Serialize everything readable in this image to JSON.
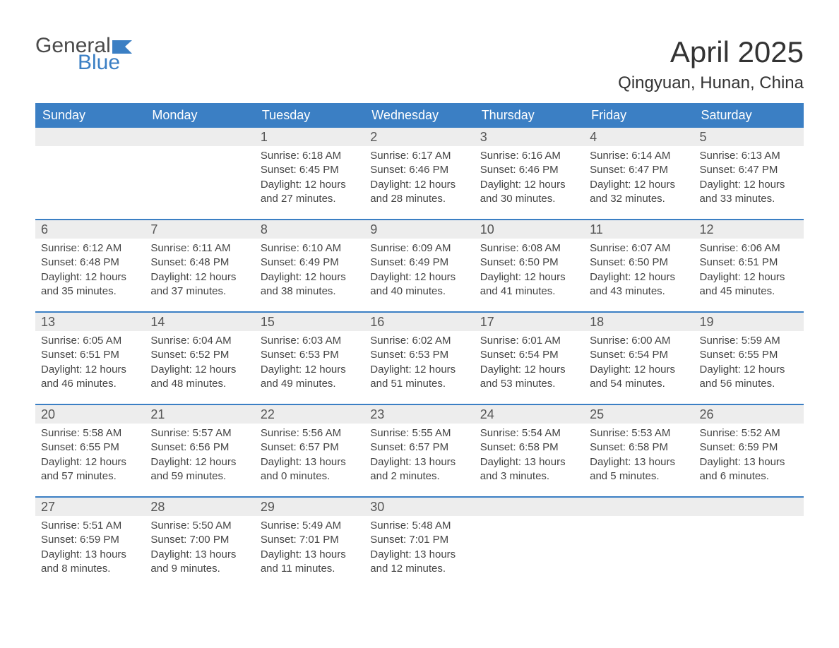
{
  "logo": {
    "text1": "General",
    "text2": "Blue",
    "flag_color": "#3b7fc4",
    "text1_color": "#4a4a4a"
  },
  "title": "April 2025",
  "location": "Qingyuan, Hunan, China",
  "colors": {
    "header_bg": "#3b7fc4",
    "header_text": "#ffffff",
    "daynum_bg": "#ededed",
    "body_text": "#444444",
    "rule": "#3b7fc4"
  },
  "day_names": [
    "Sunday",
    "Monday",
    "Tuesday",
    "Wednesday",
    "Thursday",
    "Friday",
    "Saturday"
  ],
  "weeks": [
    [
      {
        "day": "",
        "sunrise": "",
        "sunset": "",
        "daylight": ""
      },
      {
        "day": "",
        "sunrise": "",
        "sunset": "",
        "daylight": ""
      },
      {
        "day": "1",
        "sunrise": "6:18 AM",
        "sunset": "6:45 PM",
        "daylight": "12 hours and 27 minutes."
      },
      {
        "day": "2",
        "sunrise": "6:17 AM",
        "sunset": "6:46 PM",
        "daylight": "12 hours and 28 minutes."
      },
      {
        "day": "3",
        "sunrise": "6:16 AM",
        "sunset": "6:46 PM",
        "daylight": "12 hours and 30 minutes."
      },
      {
        "day": "4",
        "sunrise": "6:14 AM",
        "sunset": "6:47 PM",
        "daylight": "12 hours and 32 minutes."
      },
      {
        "day": "5",
        "sunrise": "6:13 AM",
        "sunset": "6:47 PM",
        "daylight": "12 hours and 33 minutes."
      }
    ],
    [
      {
        "day": "6",
        "sunrise": "6:12 AM",
        "sunset": "6:48 PM",
        "daylight": "12 hours and 35 minutes."
      },
      {
        "day": "7",
        "sunrise": "6:11 AM",
        "sunset": "6:48 PM",
        "daylight": "12 hours and 37 minutes."
      },
      {
        "day": "8",
        "sunrise": "6:10 AM",
        "sunset": "6:49 PM",
        "daylight": "12 hours and 38 minutes."
      },
      {
        "day": "9",
        "sunrise": "6:09 AM",
        "sunset": "6:49 PM",
        "daylight": "12 hours and 40 minutes."
      },
      {
        "day": "10",
        "sunrise": "6:08 AM",
        "sunset": "6:50 PM",
        "daylight": "12 hours and 41 minutes."
      },
      {
        "day": "11",
        "sunrise": "6:07 AM",
        "sunset": "6:50 PM",
        "daylight": "12 hours and 43 minutes."
      },
      {
        "day": "12",
        "sunrise": "6:06 AM",
        "sunset": "6:51 PM",
        "daylight": "12 hours and 45 minutes."
      }
    ],
    [
      {
        "day": "13",
        "sunrise": "6:05 AM",
        "sunset": "6:51 PM",
        "daylight": "12 hours and 46 minutes."
      },
      {
        "day": "14",
        "sunrise": "6:04 AM",
        "sunset": "6:52 PM",
        "daylight": "12 hours and 48 minutes."
      },
      {
        "day": "15",
        "sunrise": "6:03 AM",
        "sunset": "6:53 PM",
        "daylight": "12 hours and 49 minutes."
      },
      {
        "day": "16",
        "sunrise": "6:02 AM",
        "sunset": "6:53 PM",
        "daylight": "12 hours and 51 minutes."
      },
      {
        "day": "17",
        "sunrise": "6:01 AM",
        "sunset": "6:54 PM",
        "daylight": "12 hours and 53 minutes."
      },
      {
        "day": "18",
        "sunrise": "6:00 AM",
        "sunset": "6:54 PM",
        "daylight": "12 hours and 54 minutes."
      },
      {
        "day": "19",
        "sunrise": "5:59 AM",
        "sunset": "6:55 PM",
        "daylight": "12 hours and 56 minutes."
      }
    ],
    [
      {
        "day": "20",
        "sunrise": "5:58 AM",
        "sunset": "6:55 PM",
        "daylight": "12 hours and 57 minutes."
      },
      {
        "day": "21",
        "sunrise": "5:57 AM",
        "sunset": "6:56 PM",
        "daylight": "12 hours and 59 minutes."
      },
      {
        "day": "22",
        "sunrise": "5:56 AM",
        "sunset": "6:57 PM",
        "daylight": "13 hours and 0 minutes."
      },
      {
        "day": "23",
        "sunrise": "5:55 AM",
        "sunset": "6:57 PM",
        "daylight": "13 hours and 2 minutes."
      },
      {
        "day": "24",
        "sunrise": "5:54 AM",
        "sunset": "6:58 PM",
        "daylight": "13 hours and 3 minutes."
      },
      {
        "day": "25",
        "sunrise": "5:53 AM",
        "sunset": "6:58 PM",
        "daylight": "13 hours and 5 minutes."
      },
      {
        "day": "26",
        "sunrise": "5:52 AM",
        "sunset": "6:59 PM",
        "daylight": "13 hours and 6 minutes."
      }
    ],
    [
      {
        "day": "27",
        "sunrise": "5:51 AM",
        "sunset": "6:59 PM",
        "daylight": "13 hours and 8 minutes."
      },
      {
        "day": "28",
        "sunrise": "5:50 AM",
        "sunset": "7:00 PM",
        "daylight": "13 hours and 9 minutes."
      },
      {
        "day": "29",
        "sunrise": "5:49 AM",
        "sunset": "7:01 PM",
        "daylight": "13 hours and 11 minutes."
      },
      {
        "day": "30",
        "sunrise": "5:48 AM",
        "sunset": "7:01 PM",
        "daylight": "13 hours and 12 minutes."
      },
      {
        "day": "",
        "sunrise": "",
        "sunset": "",
        "daylight": ""
      },
      {
        "day": "",
        "sunrise": "",
        "sunset": "",
        "daylight": ""
      },
      {
        "day": "",
        "sunrise": "",
        "sunset": "",
        "daylight": ""
      }
    ]
  ],
  "labels": {
    "sunrise": "Sunrise: ",
    "sunset": "Sunset: ",
    "daylight": "Daylight: "
  }
}
